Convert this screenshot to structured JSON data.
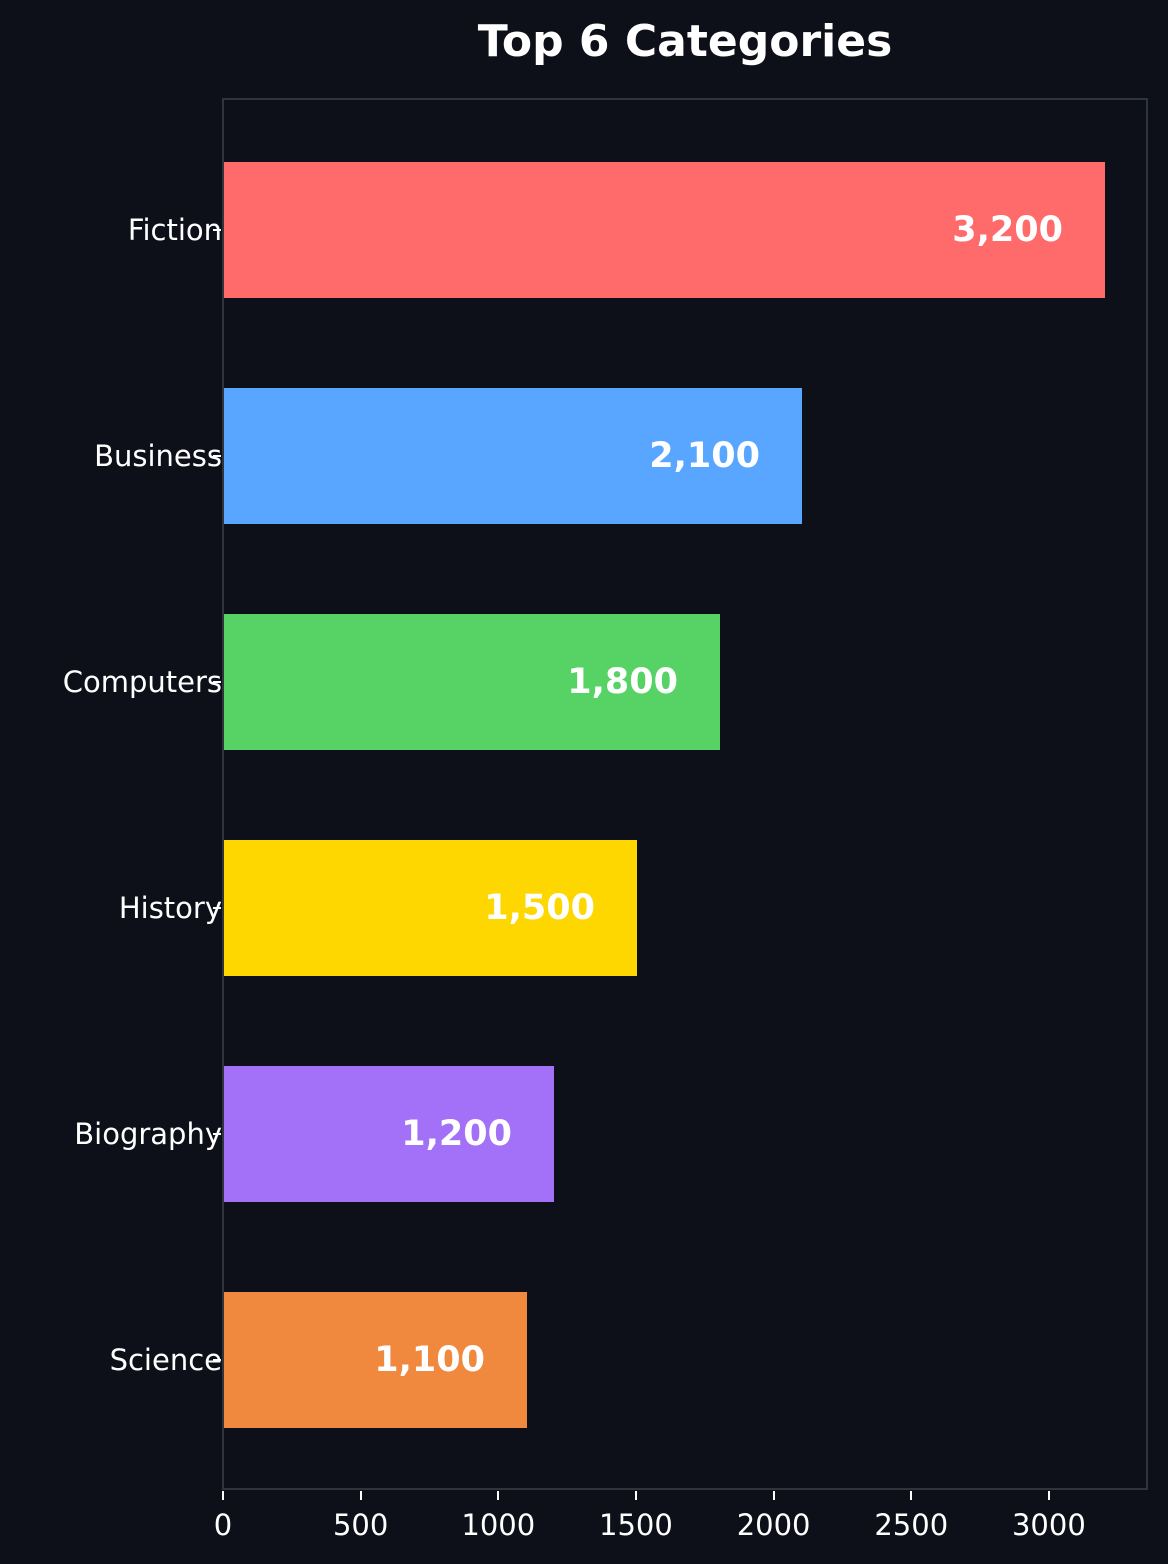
{
  "chart_data": {
    "type": "bar",
    "orientation": "horizontal",
    "title": "Top 6 Categories",
    "xlabel": "",
    "ylabel": "",
    "categories": [
      "Fiction",
      "Business",
      "Computers",
      "History",
      "Biography",
      "Science"
    ],
    "values": [
      3200,
      2100,
      1800,
      1500,
      1200,
      1100
    ],
    "value_labels": [
      "3,200",
      "2,100",
      "1,800",
      "1,500",
      "1,200",
      "1,100"
    ],
    "colors": [
      "#ff6b6b",
      "#58a6ff",
      "#56d364",
      "#ffd700",
      "#a371f7",
      "#f0883e"
    ],
    "xlim": [
      0,
      3360
    ],
    "xticks": [
      "0",
      "500",
      "1000",
      "1500",
      "2000",
      "2500",
      "3000"
    ],
    "xtick_values": [
      0,
      500,
      1000,
      1500,
      2000,
      2500,
      3000
    ],
    "grid": false,
    "legend": null,
    "background": "#0d1018",
    "axes_edge_color": "#30343c"
  }
}
